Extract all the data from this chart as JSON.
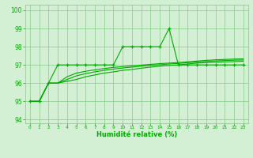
{
  "xlabel": "Humidité relative (%)",
  "background_color": "#d4f0d4",
  "grid_color": "#88cc88",
  "line_color": "#00aa00",
  "xlim": [
    -0.5,
    23.5
  ],
  "ylim": [
    93.8,
    100.3
  ],
  "yticks": [
    94,
    95,
    96,
    97,
    98,
    99,
    100
  ],
  "xticks": [
    0,
    1,
    2,
    3,
    4,
    5,
    6,
    7,
    8,
    9,
    10,
    11,
    12,
    13,
    14,
    15,
    16,
    17,
    18,
    19,
    20,
    21,
    22,
    23
  ],
  "line1": [
    95,
    95,
    96,
    97,
    97,
    97,
    97,
    97,
    97,
    97,
    98,
    98,
    98,
    98,
    98,
    99,
    97,
    97,
    97,
    97,
    97,
    97,
    97,
    97
  ],
  "line2": [
    95,
    95,
    96,
    96,
    96.1,
    96.2,
    96.35,
    96.45,
    96.55,
    96.62,
    96.7,
    96.75,
    96.82,
    96.88,
    96.93,
    96.97,
    97.0,
    97.05,
    97.1,
    97.12,
    97.15,
    97.17,
    97.18,
    97.2
  ],
  "line3": [
    95,
    95,
    96,
    96,
    96.2,
    96.4,
    96.52,
    96.62,
    96.7,
    96.77,
    96.83,
    96.88,
    96.93,
    96.97,
    97.01,
    97.05,
    97.08,
    97.12,
    97.16,
    97.19,
    97.22,
    97.24,
    97.26,
    97.27
  ],
  "line4": [
    95,
    95,
    96,
    96,
    96.35,
    96.55,
    96.65,
    96.73,
    96.8,
    96.86,
    96.91,
    96.95,
    96.99,
    97.03,
    97.07,
    97.1,
    97.13,
    97.17,
    97.21,
    97.25,
    97.28,
    97.3,
    97.32,
    97.33
  ]
}
